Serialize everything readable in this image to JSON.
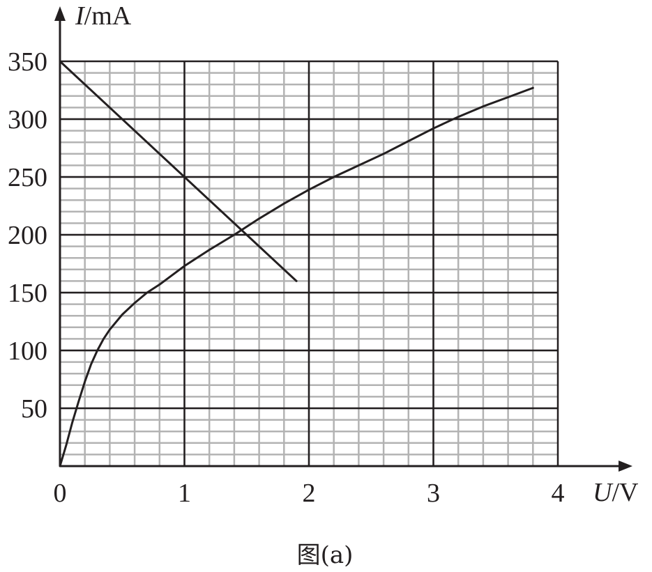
{
  "chart_data": {
    "type": "line",
    "xlabel": {
      "var": "U",
      "unit": "/V"
    },
    "ylabel": {
      "var": "I",
      "unit": "/mA"
    },
    "xlim": [
      0,
      4
    ],
    "ylim": [
      0,
      350
    ],
    "x_ticks": [
      "0",
      "1",
      "2",
      "3",
      "4"
    ],
    "y_ticks": [
      "50",
      "100",
      "150",
      "200",
      "250",
      "300",
      "350"
    ],
    "y_tick_values": [
      50,
      100,
      150,
      200,
      250,
      300,
      350
    ],
    "x_tick_values": [
      0,
      1,
      2,
      3,
      4
    ],
    "grid": true,
    "minor_grid": {
      "x_step": 0.2,
      "y_step": 10
    },
    "caption": "图(a)",
    "series": [
      {
        "x": [
          0,
          1.9
        ],
        "y": [
          350,
          160
        ]
      },
      {
        "x": [
          0,
          0.05,
          0.1,
          0.15,
          0.2,
          0.25,
          0.3,
          0.35,
          0.4,
          0.5,
          0.6,
          0.7,
          0.8,
          1.0,
          1.2,
          1.4,
          1.6,
          1.8,
          2.0,
          2.2,
          2.4,
          2.6,
          2.8,
          3.0,
          3.2,
          3.4,
          3.6,
          3.8
        ],
        "y": [
          0,
          18,
          38,
          56,
          73,
          88,
          100,
          110,
          118,
          131,
          141,
          150,
          157,
          173,
          187,
          200,
          214,
          227,
          239,
          250,
          260,
          270,
          281,
          292,
          302,
          311,
          319,
          327
        ]
      }
    ]
  }
}
